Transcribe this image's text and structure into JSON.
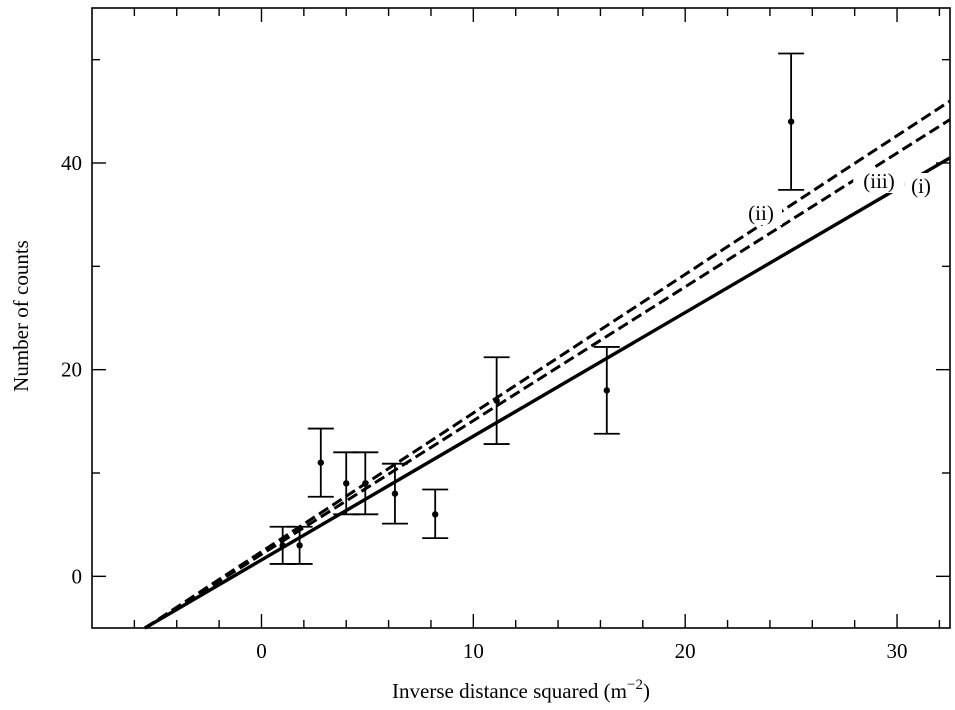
{
  "chart_data": {
    "type": "scatter",
    "xlabel": "Inverse distance squared (m",
    "xlabel_superscript": "−2",
    "xlabel_close": ")",
    "ylabel": "Number of counts",
    "xlim": [
      -8,
      32.5
    ],
    "ylim": [
      -5,
      55
    ],
    "x_ticks": [
      0,
      10,
      20,
      30
    ],
    "y_ticks": [
      0,
      20,
      40
    ],
    "x_tick_labels": [
      "0",
      "10",
      "20",
      "30"
    ],
    "y_tick_labels": [
      "0",
      "20",
      "40"
    ],
    "grid": false,
    "points": [
      {
        "x": 1.0,
        "y": 3.0,
        "err_low": 1.2,
        "err_high": 4.8
      },
      {
        "x": 1.8,
        "y": 3.0,
        "err_low": 1.2,
        "err_high": 4.8
      },
      {
        "x": 2.8,
        "y": 11.0,
        "err_low": 7.7,
        "err_high": 14.3
      },
      {
        "x": 4.0,
        "y": 9.0,
        "err_low": 6.0,
        "err_high": 12.0
      },
      {
        "x": 4.9,
        "y": 9.0,
        "err_low": 6.0,
        "err_high": 12.0
      },
      {
        "x": 6.3,
        "y": 8.0,
        "err_low": 5.1,
        "err_high": 10.9
      },
      {
        "x": 8.2,
        "y": 6.0,
        "err_low": 3.7,
        "err_high": 8.4
      },
      {
        "x": 11.1,
        "y": 17.0,
        "err_low": 12.8,
        "err_high": 21.2
      },
      {
        "x": 16.3,
        "y": 18.0,
        "err_low": 13.8,
        "err_high": 22.2
      },
      {
        "x": 25.0,
        "y": 44.0,
        "err_low": 37.4,
        "err_high": 50.6
      }
    ],
    "series": [
      {
        "name": "(i)",
        "style": "solid",
        "x": [
          -5.5,
          32.5
        ],
        "y": [
          -5,
          40.5
        ]
      },
      {
        "name": "(ii)",
        "style": "dashed",
        "x": [
          -5.5,
          32.5
        ],
        "y": [
          -5,
          46
        ]
      },
      {
        "name": "(iii)",
        "style": "dashed",
        "x": [
          -5.5,
          32.5
        ],
        "y": [
          -5,
          44.2
        ]
      }
    ]
  }
}
